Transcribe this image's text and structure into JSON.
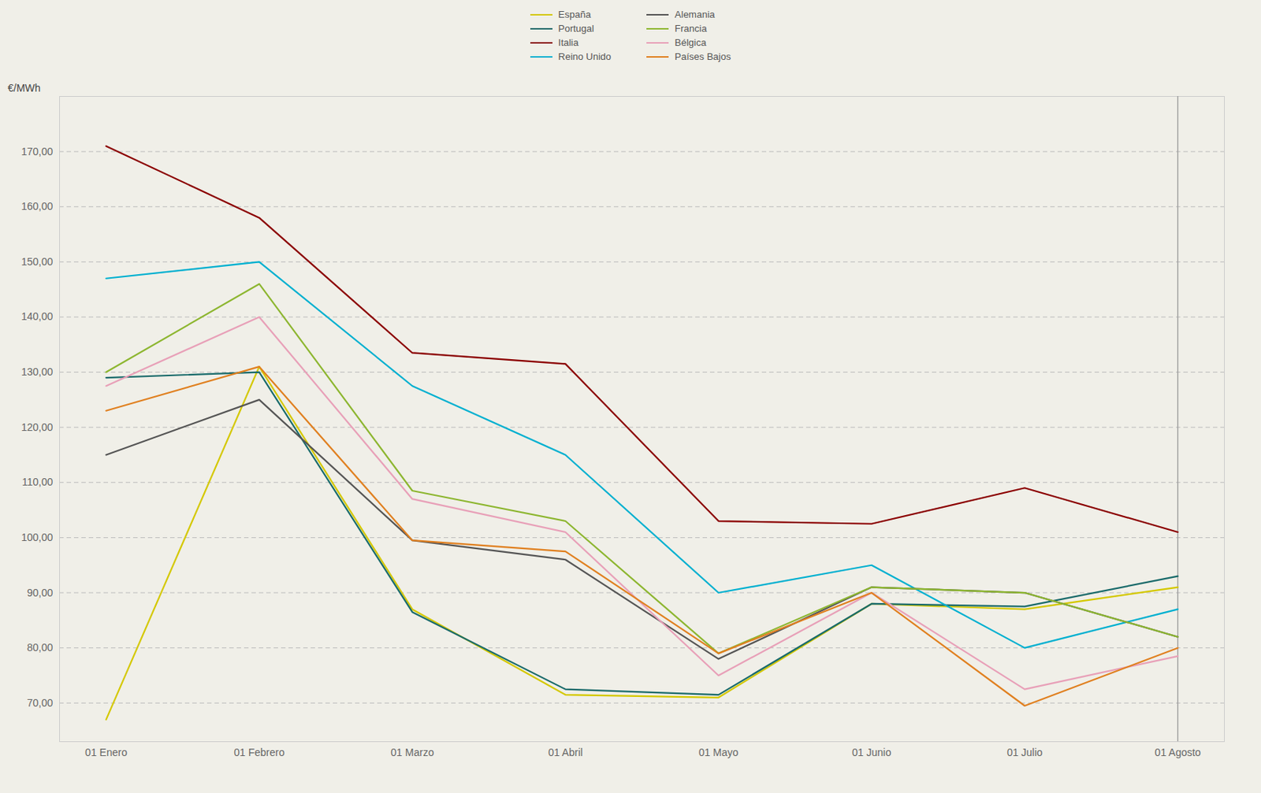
{
  "chart_data": {
    "type": "line",
    "ylabel": "€/MWh",
    "categories": [
      "01 Enero",
      "01 Febrero",
      "01 Marzo",
      "01 Abril",
      "01 Mayo",
      "01 Junio",
      "01 Julio",
      "01 Agosto"
    ],
    "ylim": [
      63,
      180
    ],
    "yticks": [
      {
        "value": 70,
        "label": "70,00"
      },
      {
        "value": 80,
        "label": "80,00"
      },
      {
        "value": 90,
        "label": "90,00"
      },
      {
        "value": 100,
        "label": "100,00"
      },
      {
        "value": 110,
        "label": "110,00"
      },
      {
        "value": 120,
        "label": "120,00"
      },
      {
        "value": 130,
        "label": "130,00"
      },
      {
        "value": 140,
        "label": "140,00"
      },
      {
        "value": 150,
        "label": "150,00"
      },
      {
        "value": 160,
        "label": "160,00"
      },
      {
        "value": 170,
        "label": "170,00"
      }
    ],
    "grid": true,
    "legend": "top",
    "series": [
      {
        "name": "España",
        "color": "#d4c800",
        "values": [
          67.0,
          131.0,
          87.0,
          71.5,
          71.0,
          88.0,
          87.0,
          91.0
        ]
      },
      {
        "name": "Portugal",
        "color": "#1a6b6b",
        "values": [
          129.0,
          130.0,
          86.5,
          72.5,
          71.5,
          88.0,
          87.5,
          93.0
        ]
      },
      {
        "name": "Italia",
        "color": "#8b0000",
        "values": [
          171.0,
          158.0,
          133.5,
          131.5,
          103.0,
          102.5,
          109.0,
          101.0
        ]
      },
      {
        "name": "Reino Unido",
        "color": "#00b0d0",
        "values": [
          147.0,
          150.0,
          127.5,
          115.0,
          90.0,
          95.0,
          80.0,
          87.0
        ]
      },
      {
        "name": "Alemania",
        "color": "#555555",
        "values": [
          115.0,
          125.0,
          99.5,
          96.0,
          78.0,
          91.0,
          90.0,
          82.0
        ]
      },
      {
        "name": "Francia",
        "color": "#8db630",
        "values": [
          130.0,
          146.0,
          108.5,
          103.0,
          79.0,
          91.0,
          90.0,
          82.0
        ]
      },
      {
        "name": "Bélgica",
        "color": "#e8a0b8",
        "values": [
          127.5,
          140.0,
          107.0,
          101.0,
          75.0,
          90.0,
          72.5,
          78.5
        ]
      },
      {
        "name": "Países Bajos",
        "color": "#e08020",
        "values": [
          123.0,
          131.0,
          99.5,
          97.5,
          79.0,
          90.0,
          69.5,
          80.0
        ]
      }
    ]
  }
}
